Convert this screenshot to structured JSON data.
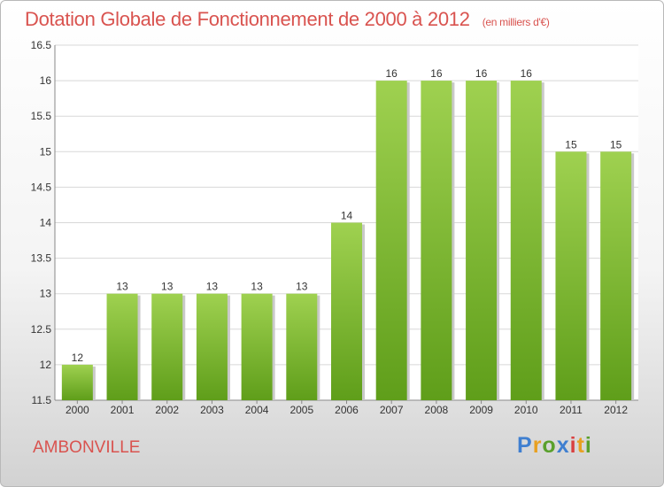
{
  "header": {
    "title": "Dotation Globale de Fonctionnement de 2000 à 2012",
    "units": "(en milliers d'€)"
  },
  "footer": {
    "commune": "AMBONVILLE",
    "logo_letters": [
      "P",
      "r",
      "o",
      "x",
      "i",
      "t",
      "i"
    ]
  },
  "colors": {
    "bar_top": "#9fd150",
    "bar_bottom": "#5f9e1a",
    "title": "#d9534f"
  },
  "chart_data": {
    "type": "bar",
    "categories": [
      "2000",
      "2001",
      "2002",
      "2003",
      "2004",
      "2005",
      "2006",
      "2007",
      "2008",
      "2009",
      "2010",
      "2011",
      "2012"
    ],
    "values": [
      12,
      13,
      13,
      13,
      13,
      13,
      14,
      16,
      16,
      16,
      16,
      15,
      15
    ],
    "data_labels": [
      "12",
      "13",
      "13",
      "13",
      "13",
      "13",
      "14",
      "16",
      "16",
      "16",
      "16",
      "15",
      "15"
    ],
    "title": "Dotation Globale de Fonctionnement de 2000 à 2012",
    "xlabel": "",
    "ylabel": "",
    "ylim": [
      11.5,
      16.5
    ],
    "yticks": [
      "11.5",
      "12",
      "12.5",
      "13",
      "13.5",
      "14",
      "14.5",
      "15",
      "15.5",
      "16",
      "16.5"
    ],
    "grid": true
  }
}
